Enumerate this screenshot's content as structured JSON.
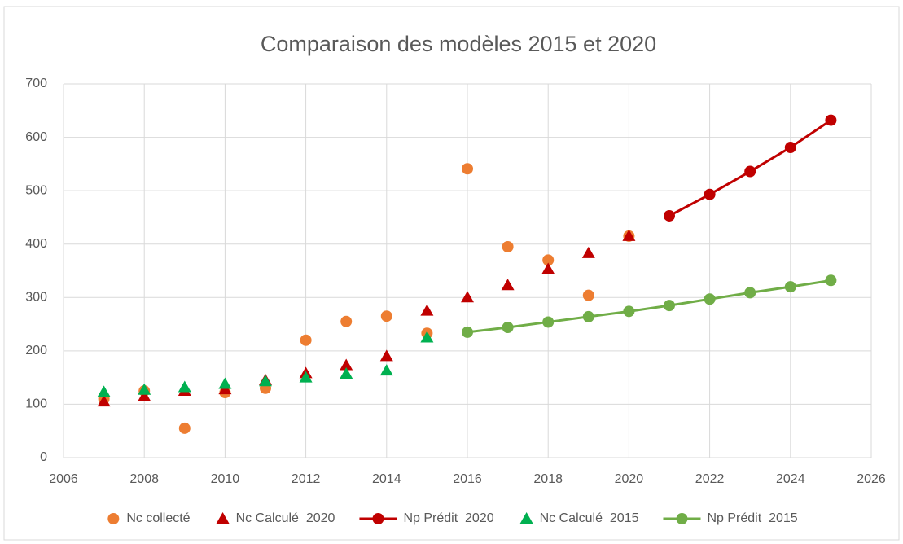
{
  "chart_data": {
    "type": "scatter",
    "title": "Comparaison des modèles 2015 et 2020",
    "xlim": [
      2006,
      2026
    ],
    "xticks": [
      2006,
      2008,
      2010,
      2012,
      2014,
      2016,
      2018,
      2020,
      2022,
      2024,
      2026
    ],
    "ylim": [
      0,
      700
    ],
    "yticks": [
      0,
      100,
      200,
      300,
      400,
      500,
      600,
      700
    ],
    "grid": true,
    "legend": "bottom",
    "series": [
      {
        "name": "Nc collecté",
        "color": "#ed7d31",
        "marker": "circle",
        "line": false,
        "x": [
          2007,
          2008,
          2009,
          2010,
          2011,
          2012,
          2013,
          2014,
          2015,
          2016,
          2017,
          2018,
          2019,
          2020
        ],
        "values": [
          110,
          125,
          55,
          122,
          130,
          220,
          255,
          265,
          233,
          541,
          395,
          370,
          304,
          415
        ]
      },
      {
        "name": "Nc Calculé_2020",
        "color": "#c00000",
        "marker": "triangle",
        "line": false,
        "x": [
          2007,
          2008,
          2009,
          2010,
          2011,
          2012,
          2013,
          2014,
          2015,
          2016,
          2017,
          2018,
          2019,
          2020
        ],
        "values": [
          105,
          115,
          125,
          128,
          145,
          158,
          173,
          190,
          275,
          300,
          323,
          353,
          383,
          415
        ]
      },
      {
        "name": "Np Prédit_2020",
        "color": "#c00000",
        "marker": "circle",
        "line": true,
        "x": [
          2021,
          2022,
          2023,
          2024,
          2025
        ],
        "values": [
          453,
          493,
          536,
          581,
          632
        ]
      },
      {
        "name": "Nc Calculé_2015",
        "color": "#00b050",
        "marker": "triangle",
        "line": false,
        "x": [
          2007,
          2008,
          2009,
          2010,
          2011,
          2012,
          2013,
          2014,
          2015
        ],
        "values": [
          123,
          127,
          132,
          138,
          143,
          150,
          157,
          163,
          225
        ]
      },
      {
        "name": "Np Prédit_2015",
        "color": "#70ad47",
        "marker": "circle",
        "line": true,
        "x": [
          2016,
          2017,
          2018,
          2019,
          2020,
          2021,
          2022,
          2023,
          2024,
          2025
        ],
        "values": [
          235,
          244,
          254,
          264,
          274,
          285,
          297,
          309,
          320,
          332
        ]
      }
    ]
  }
}
